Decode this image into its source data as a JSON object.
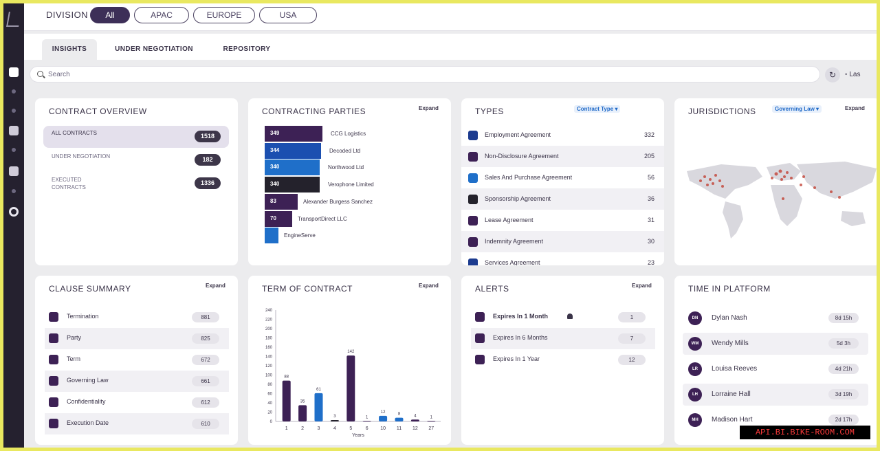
{
  "division": {
    "label": "DIVISION",
    "options": [
      "All",
      "APAC",
      "EUROPE",
      "USA"
    ],
    "selected": "All"
  },
  "tabs": [
    "INSIGHTS",
    "UNDER NEGOTIATION",
    "REPOSITORY"
  ],
  "search": {
    "placeholder": "Search"
  },
  "toolbar": {
    "last_label": "Las"
  },
  "overview": {
    "title": "CONTRACT OVERVIEW",
    "rows": [
      {
        "label": "ALL CONTRACTS",
        "count": "1518"
      },
      {
        "label": "UNDER NEGOTIATION",
        "count": "182"
      },
      {
        "label": "EXECUTED CONTRACTS",
        "count": "1336"
      }
    ]
  },
  "parties": {
    "title": "CONTRACTING PARTIES",
    "expand": "Expand",
    "items": [
      {
        "name": "CCG Logistics",
        "value": 349,
        "color": "#3d2155"
      },
      {
        "name": "Decoded Ltd",
        "value": 344,
        "color": "#1b4fb0"
      },
      {
        "name": "Northwood Ltd",
        "value": 340,
        "color": "#1f6fc9"
      },
      {
        "name": "Verophone Limited",
        "value": 340,
        "color": "#24222c"
      },
      {
        "name": "Alexander Burgess Sanchez",
        "value": 83,
        "color": "#3d2155"
      },
      {
        "name": "TransportDirect LLC",
        "value": 70,
        "color": "#3d2155"
      },
      {
        "name": "EngineServe",
        "value": "",
        "color": "#1f6fc9"
      }
    ]
  },
  "types": {
    "title": "TYPES",
    "select_label": "Contract Type",
    "items": [
      {
        "name": "Employment Agreement",
        "count": "332",
        "color": "#1c3b8f"
      },
      {
        "name": "Non-Disclosure Agreement",
        "count": "205",
        "color": "#3d2155"
      },
      {
        "name": "Sales And Purchase Agreement",
        "count": "56",
        "color": "#1f6fc9"
      },
      {
        "name": "Sponsorship Agreement",
        "count": "36",
        "color": "#24222c"
      },
      {
        "name": "Lease Agreement",
        "count": "31",
        "color": "#3d2155"
      },
      {
        "name": "Indemnity Agreement",
        "count": "30",
        "color": "#3d2155"
      },
      {
        "name": "Services Agreement",
        "count": "23",
        "color": "#1c3b8f"
      }
    ]
  },
  "jurisdictions": {
    "title": "JURISDICTIONS",
    "select_label": "Governing Law",
    "expand": "Expand"
  },
  "clauses": {
    "title": "CLAUSE SUMMARY",
    "expand": "Expand",
    "items": [
      {
        "name": "Termination",
        "count": "881"
      },
      {
        "name": "Party",
        "count": "825"
      },
      {
        "name": "Term",
        "count": "672"
      },
      {
        "name": "Governing Law",
        "count": "661"
      },
      {
        "name": "Confidentiality",
        "count": "612"
      },
      {
        "name": "Execution Date",
        "count": "610"
      }
    ]
  },
  "term": {
    "title": "TERM OF CONTRACT",
    "expand": "Expand"
  },
  "alerts": {
    "title": "ALERTS",
    "expand": "Expand",
    "items": [
      {
        "name": "Expires In 1 Month",
        "count": "1"
      },
      {
        "name": "Expires In 6 Months",
        "count": "7"
      },
      {
        "name": "Expires In 1 Year",
        "count": "12"
      }
    ]
  },
  "platform": {
    "title": "TIME IN PLATFORM",
    "items": [
      {
        "initials": "DN",
        "name": "Dylan Nash",
        "time": "8d 15h"
      },
      {
        "initials": "WM",
        "name": "Wendy Mills",
        "time": "5d 3h"
      },
      {
        "initials": "LR",
        "name": "Louisa Reeves",
        "time": "4d 21h"
      },
      {
        "initials": "LH",
        "name": "Lorraine Hall",
        "time": "3d 19h"
      },
      {
        "initials": "MH",
        "name": "Madison Hart",
        "time": "2d 17h"
      }
    ]
  },
  "chart_data": {
    "type": "bar",
    "title": "TERM OF CONTRACT",
    "xlabel": "Years",
    "ylabel": "",
    "categories": [
      "1",
      "2",
      "3",
      "4",
      "5",
      "6",
      "10",
      "11",
      "12",
      "27"
    ],
    "values": [
      88,
      35,
      61,
      3,
      142,
      1,
      12,
      8,
      4,
      1
    ],
    "colors": [
      "#3d2155",
      "#3d2155",
      "#1f6fc9",
      "#24222c",
      "#3d2155",
      "#3d2155",
      "#1f6fc9",
      "#1f6fc9",
      "#3d2155",
      "#3d2155"
    ],
    "yticks": [
      0,
      20,
      40,
      60,
      80,
      100,
      120,
      140,
      160,
      180,
      200,
      220,
      240
    ],
    "ylim": [
      0,
      240
    ],
    "grid": false
  },
  "watermark": "API.BI.BIKE-ROOM.COM"
}
